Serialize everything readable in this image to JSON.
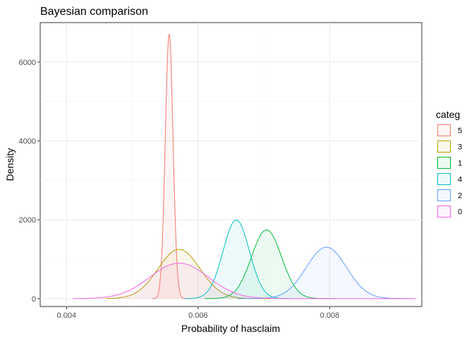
{
  "chart_data": {
    "type": "area",
    "title": "Bayesian comparison",
    "xlabel": "Probability of hasclaim",
    "ylabel": "Density",
    "xlim": [
      0.0036,
      0.0094
    ],
    "ylim": [
      -200,
      7000
    ],
    "x_ticks": [
      0.004,
      0.006,
      0.008
    ],
    "x_tick_labels": [
      "0.004",
      "0.006",
      "0.008"
    ],
    "y_ticks": [
      0,
      2000,
      4000,
      6000
    ],
    "y_tick_labels": [
      "0",
      "2000",
      "4000",
      "6000"
    ],
    "grid": true,
    "legend": {
      "title": "categ",
      "position": "right"
    },
    "series": [
      {
        "name": "5",
        "color": "#F8766D",
        "mean": 0.00556,
        "sd": 5.95e-05,
        "xmin": 0.0053,
        "xmax": 0.0059
      },
      {
        "name": "3",
        "color": "#B79F00",
        "mean": 0.00571,
        "sd": 0.000319,
        "xmin": 0.0046,
        "xmax": 0.0071
      },
      {
        "name": "1",
        "color": "#00BA38",
        "mean": 0.00704,
        "sd": 0.000229,
        "xmin": 0.0061,
        "xmax": 0.0081
      },
      {
        "name": "4",
        "color": "#00BFC4",
        "mean": 0.00658,
        "sd": 0.0002,
        "xmin": 0.0058,
        "xmax": 0.0074
      },
      {
        "name": "2",
        "color": "#619CFF",
        "mean": 0.00795,
        "sd": 0.000306,
        "xmin": 0.0066,
        "xmax": 0.0093
      },
      {
        "name": "0",
        "color": "#F564E3",
        "mean": 0.00571,
        "sd": 0.000443,
        "xmin": 0.0041,
        "xmax": 0.0093
      }
    ]
  }
}
